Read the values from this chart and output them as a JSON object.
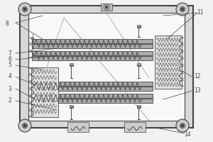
{
  "bg_color": "#f2f2f2",
  "line_color": "#444444",
  "dark_gray": "#888888",
  "med_gray": "#aaaaaa",
  "light_gray": "#cccccc",
  "white": "#ffffff",
  "outer_fill": "#d8d8d8",
  "inner_fill": "#f8f8f8",
  "rail_fill": "#999999",
  "spring_color": "#666666"
}
